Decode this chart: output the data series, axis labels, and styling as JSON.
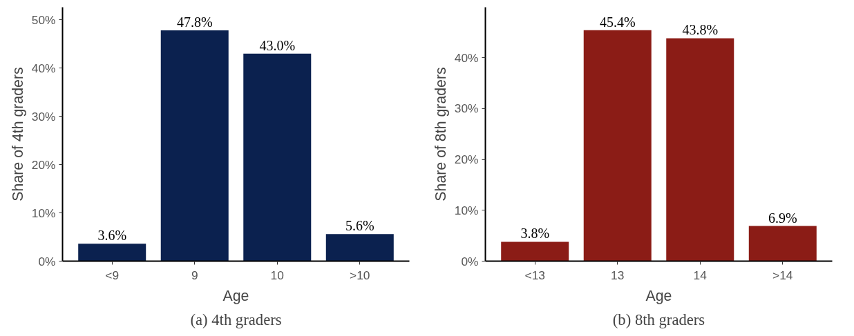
{
  "chart_data": [
    {
      "type": "bar",
      "title": "(a) 4th graders",
      "xlabel": "Age",
      "ylabel": "Share of 4th graders",
      "categories": [
        "<9",
        "9",
        "10",
        ">10"
      ],
      "values": [
        3.6,
        47.8,
        43.0,
        5.6
      ],
      "value_labels": [
        "3.6%",
        "47.8%",
        "43.0%",
        "5.6%"
      ],
      "color": "#0b214f",
      "ylim": [
        0,
        52.6
      ],
      "yticks": [
        {
          "value": 0,
          "label": "0%"
        },
        {
          "value": 10,
          "label": "10%"
        },
        {
          "value": 20,
          "label": "20%"
        },
        {
          "value": 30,
          "label": "30%"
        },
        {
          "value": 40,
          "label": "40%"
        },
        {
          "value": 50,
          "label": "50%"
        }
      ],
      "grid": false,
      "legend": false
    },
    {
      "type": "bar",
      "title": "(b) 8th graders",
      "xlabel": "Age",
      "ylabel": "Share of 8th graders",
      "categories": [
        "<13",
        "13",
        "14",
        ">14"
      ],
      "values": [
        3.8,
        45.4,
        43.8,
        6.9
      ],
      "value_labels": [
        "3.8%",
        "45.4%",
        "43.8%",
        "6.9%"
      ],
      "color": "#8b1c16",
      "ylim": [
        0,
        49.9
      ],
      "yticks": [
        {
          "value": 0,
          "label": "0%"
        },
        {
          "value": 10,
          "label": "10%"
        },
        {
          "value": 20,
          "label": "20%"
        },
        {
          "value": 30,
          "label": "30%"
        },
        {
          "value": 40,
          "label": "40%"
        }
      ],
      "grid": false,
      "legend": false
    }
  ]
}
